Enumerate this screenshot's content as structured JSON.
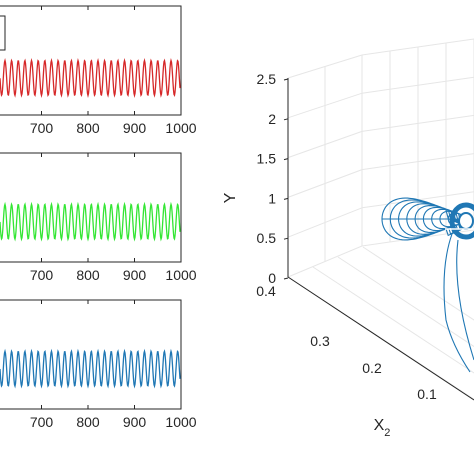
{
  "chart_data": [
    {
      "type": "line",
      "panel": "top",
      "xlabel": "",
      "ylabel": "",
      "xlim": [
        600,
        1000
      ],
      "x_ticks": [
        "700",
        "800",
        "900",
        "1000"
      ],
      "color": "#d62728",
      "waveform": {
        "cycles_visible": 28,
        "y_min": -0.8,
        "y_max": 0.8
      },
      "legend_box": "top-left (partially visible, label cropped)"
    },
    {
      "type": "line",
      "panel": "middle",
      "xlabel": "",
      "ylabel": "",
      "xlim": [
        600,
        1000
      ],
      "x_ticks": [
        "700",
        "800",
        "900",
        "1000"
      ],
      "color": "#33e633",
      "waveform": {
        "cycles_visible": 28,
        "y_min": -0.8,
        "y_max": 0.8
      }
    },
    {
      "type": "line",
      "panel": "bottom",
      "xlabel": "",
      "ylabel": "",
      "xlim": [
        600,
        1000
      ],
      "x_ticks": [
        "700",
        "800",
        "900",
        "1000"
      ],
      "color": "#1f77b4",
      "waveform": {
        "cycles_visible": 28,
        "y_min": -0.8,
        "y_max": 0.8
      }
    },
    {
      "type": "line",
      "panel": "3d-phase",
      "ylabel": "Y",
      "xlabel_text": "X",
      "xlabel_sub": "2",
      "z_ticks": [
        "0",
        "0.5",
        "1",
        "1.5",
        "2",
        "2.5"
      ],
      "zlim": [
        0,
        2.5
      ],
      "x2_ticks": [
        "0.1",
        "0.2",
        "0.3",
        "0.4"
      ],
      "x2lim": [
        0,
        0.4
      ],
      "grid": true,
      "color": "#1f77b4",
      "attractor": {
        "center_Y": 0.85,
        "spiral_turns": 9
      }
    }
  ]
}
